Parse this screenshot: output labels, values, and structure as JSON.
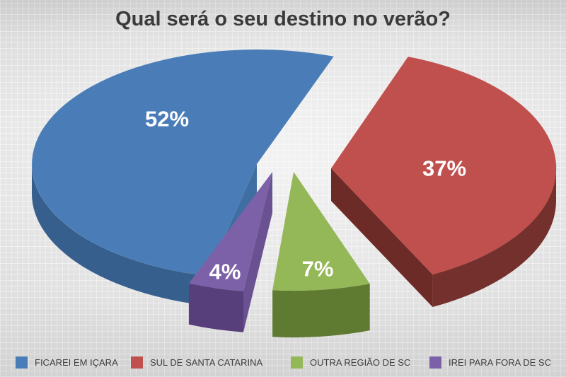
{
  "title": "Qual será o seu destino no verão?",
  "chart_data": {
    "type": "pie",
    "title": "Qual será o seu destino no verão?",
    "unit": "%",
    "effect_3d": true,
    "exploded": true,
    "legend_position": "bottom",
    "slices": [
      {
        "label": "FICAREI EM IÇARA",
        "value": 52,
        "display": "52%",
        "color": "#4a7db8",
        "side_color": "#365f8d",
        "cut_color": "#3f6fa2"
      },
      {
        "label": "SUL DE SANTA CATARINA",
        "value": 37,
        "display": "37%",
        "color": "#c0504d",
        "side_color": "#74302c",
        "cut_color": "#6c2b27"
      },
      {
        "label": "OUTRA REGIÃO DE SC",
        "value": 7,
        "display": "7%",
        "color": "#94b757",
        "side_color": "#5f7a31",
        "cut_color": "#66833a"
      },
      {
        "label": "IREI PARA FORA DE SC",
        "value": 4,
        "display": "4%",
        "color": "#7c60a8",
        "side_color": "#563f7b",
        "cut_color": "#6a5191"
      }
    ],
    "text_color_title": "#3a3a3a",
    "text_color_labels": "#ffffff",
    "legend_text_color": "#3f3f3f"
  }
}
